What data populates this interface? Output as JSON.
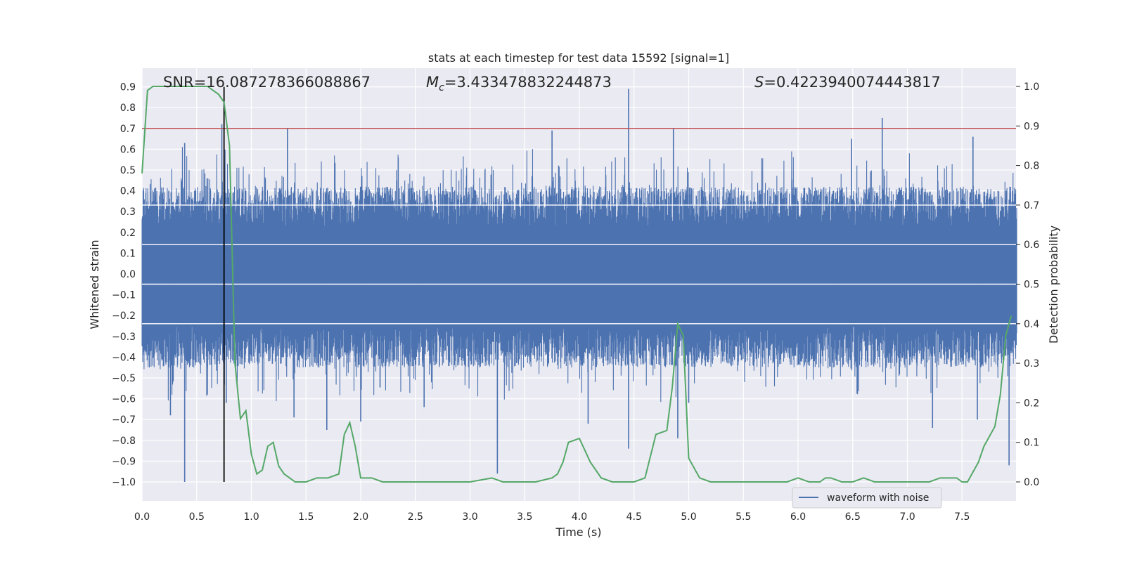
{
  "chart_data": {
    "type": "line",
    "title": "stats at each timestep for test data 15592 [signal=1]",
    "xlabel": "Time (s)",
    "ylabel": "Whitened strain",
    "ylabel_right": "Detection probability",
    "xlim": [
      0.0,
      8.0
    ],
    "ylim": [
      -1.09,
      0.98
    ],
    "ylim_right": [
      -0.05,
      1.04
    ],
    "x_ticks": [
      "0.0",
      "0.5",
      "1.0",
      "1.5",
      "2.0",
      "2.5",
      "3.0",
      "3.5",
      "4.0",
      "4.5",
      "5.0",
      "5.5",
      "6.0",
      "6.5",
      "7.0",
      "7.5"
    ],
    "y_ticks": [
      "0.9",
      "0.8",
      "0.7",
      "0.6",
      "0.5",
      "0.4",
      "0.3",
      "0.2",
      "0.1",
      "0.0",
      "-0.1",
      "-0.2",
      "-0.3",
      "-0.4",
      "-0.5",
      "-0.6",
      "-0.7",
      "-0.8",
      "-0.9",
      "-1.0"
    ],
    "y_ticks_right": [
      "1.0",
      "0.9",
      "0.8",
      "0.7",
      "0.6",
      "0.5",
      "0.4",
      "0.3",
      "0.2",
      "0.1",
      "0.0"
    ],
    "grid": true,
    "legend_position": "lower-right",
    "annotations": {
      "snr": "SNR=16.087278366088867",
      "mc_label": "M",
      "mc_sub": "c",
      "mc_value": "=3.433478832244873",
      "s_label": "S",
      "s_value": "=0.4223940074443817"
    },
    "threshold_line": {
      "y": 0.7,
      "color": "#c44e52"
    },
    "marker_line": {
      "x": 0.75,
      "y_range": [
        -1.0,
        0.9
      ],
      "color": "#000000"
    },
    "series": [
      {
        "name": "waveform with noise",
        "axis": "left",
        "color": "#4c72b0",
        "envelope_upper_typical": 0.42,
        "envelope_lower_typical": -0.45,
        "peaks": [
          {
            "x": 0.39,
            "y": 0.63
          },
          {
            "x": 0.39,
            "y": -1.0
          },
          {
            "x": 0.26,
            "y": -0.68
          },
          {
            "x": 0.73,
            "y": 0.72
          },
          {
            "x": 0.77,
            "y": -0.62
          },
          {
            "x": 1.33,
            "y": 0.7
          },
          {
            "x": 1.39,
            "y": -0.69
          },
          {
            "x": 1.69,
            "y": -0.75
          },
          {
            "x": 2.0,
            "y": -0.71
          },
          {
            "x": 2.58,
            "y": -0.64
          },
          {
            "x": 3.25,
            "y": -0.96
          },
          {
            "x": 3.75,
            "y": 0.69
          },
          {
            "x": 4.08,
            "y": -0.72
          },
          {
            "x": 4.45,
            "y": 0.89
          },
          {
            "x": 4.45,
            "y": -0.84
          },
          {
            "x": 4.86,
            "y": 0.7
          },
          {
            "x": 4.9,
            "y": -0.79
          },
          {
            "x": 5.0,
            "y": -0.62
          },
          {
            "x": 6.49,
            "y": 0.65
          },
          {
            "x": 6.77,
            "y": 0.75
          },
          {
            "x": 6.37,
            "y": -0.27
          },
          {
            "x": 7.23,
            "y": -0.74
          },
          {
            "x": 7.6,
            "y": 0.66
          },
          {
            "x": 7.64,
            "y": -0.7
          },
          {
            "x": 7.93,
            "y": -0.92
          }
        ]
      },
      {
        "name": "",
        "axis": "right",
        "color": "#55a868",
        "x": [
          0.0,
          0.05,
          0.1,
          0.15,
          0.3,
          0.5,
          0.6,
          0.65,
          0.7,
          0.75,
          0.8,
          0.85,
          0.9,
          0.95,
          1.0,
          1.05,
          1.1,
          1.15,
          1.2,
          1.25,
          1.3,
          1.35,
          1.4,
          1.5,
          1.6,
          1.7,
          1.8,
          1.85,
          1.9,
          1.95,
          2.0,
          2.05,
          2.1,
          2.2,
          2.25,
          2.35,
          2.4,
          2.5,
          2.6,
          2.7,
          3.0,
          3.2,
          3.3,
          3.5,
          3.6,
          3.75,
          3.8,
          3.85,
          3.9,
          4.0,
          4.1,
          4.2,
          4.3,
          4.5,
          4.6,
          4.7,
          4.8,
          4.85,
          4.9,
          4.95,
          5.0,
          5.1,
          5.2,
          5.3,
          5.5,
          5.8,
          5.9,
          6.0,
          6.1,
          6.2,
          6.25,
          6.3,
          6.4,
          6.5,
          6.6,
          6.7,
          7.0,
          7.2,
          7.3,
          7.4,
          7.45,
          7.5,
          7.55,
          7.65,
          7.7,
          7.8,
          7.85,
          7.9,
          7.95
        ],
        "values": [
          0.78,
          0.99,
          1.0,
          1.0,
          1.0,
          1.0,
          1.0,
          0.99,
          0.98,
          0.96,
          0.85,
          0.3,
          0.16,
          0.18,
          0.07,
          0.02,
          0.03,
          0.09,
          0.1,
          0.04,
          0.02,
          0.01,
          0.0,
          0.0,
          0.01,
          0.01,
          0.02,
          0.12,
          0.15,
          0.09,
          0.01,
          0.01,
          0.01,
          0.0,
          0.0,
          0.0,
          0.0,
          0.0,
          0.0,
          0.0,
          0.0,
          0.01,
          0.0,
          0.0,
          0.0,
          0.01,
          0.02,
          0.05,
          0.1,
          0.11,
          0.05,
          0.01,
          0.0,
          0.0,
          0.01,
          0.12,
          0.13,
          0.24,
          0.4,
          0.37,
          0.06,
          0.01,
          0.0,
          0.0,
          0.0,
          0.0,
          0.0,
          0.01,
          0.0,
          0.0,
          0.01,
          0.01,
          0.0,
          0.0,
          0.01,
          0.0,
          0.0,
          0.0,
          0.01,
          0.01,
          0.01,
          0.0,
          0.0,
          0.05,
          0.09,
          0.14,
          0.22,
          0.37,
          0.42
        ]
      }
    ]
  }
}
